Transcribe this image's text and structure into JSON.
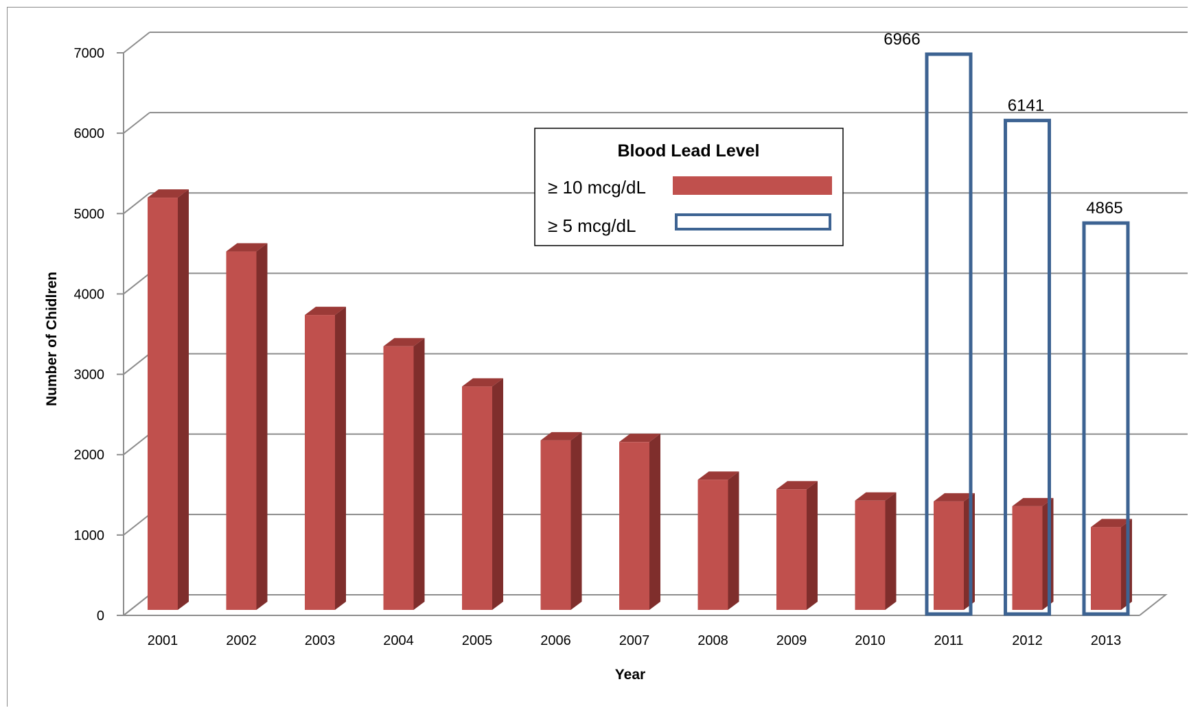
{
  "chart_data": {
    "type": "bar",
    "xlabel": "Year",
    "ylabel": "Number of Chidlren",
    "ylim": [
      0,
      7000
    ],
    "yticks": [
      0,
      1000,
      2000,
      3000,
      4000,
      5000,
      6000,
      7000
    ],
    "grid": true,
    "categories": [
      "2001",
      "2002",
      "2003",
      "2004",
      "2005",
      "2006",
      "2007",
      "2008",
      "2009",
      "2010",
      "2011",
      "2012",
      "2013"
    ],
    "series": [
      {
        "name": "≥ 10 mcg/dL",
        "style": "filled-3d",
        "color": "#c0504d",
        "values": [
          5130,
          4460,
          3670,
          3280,
          2780,
          2110,
          2090,
          1620,
          1500,
          1360,
          1350,
          1290,
          1030
        ]
      },
      {
        "name": "≥ 5 mcg/dL",
        "style": "outline",
        "color": "#3d6392",
        "values": [
          null,
          null,
          null,
          null,
          null,
          null,
          null,
          null,
          null,
          null,
          6966,
          6141,
          4865
        ]
      }
    ],
    "data_labels": [
      {
        "category": "2011",
        "text": "6966"
      },
      {
        "category": "2012",
        "text": "6141"
      },
      {
        "category": "2013",
        "text": "4865"
      }
    ],
    "legend": {
      "title": "Blood Lead Level",
      "placement": "top-center"
    }
  }
}
